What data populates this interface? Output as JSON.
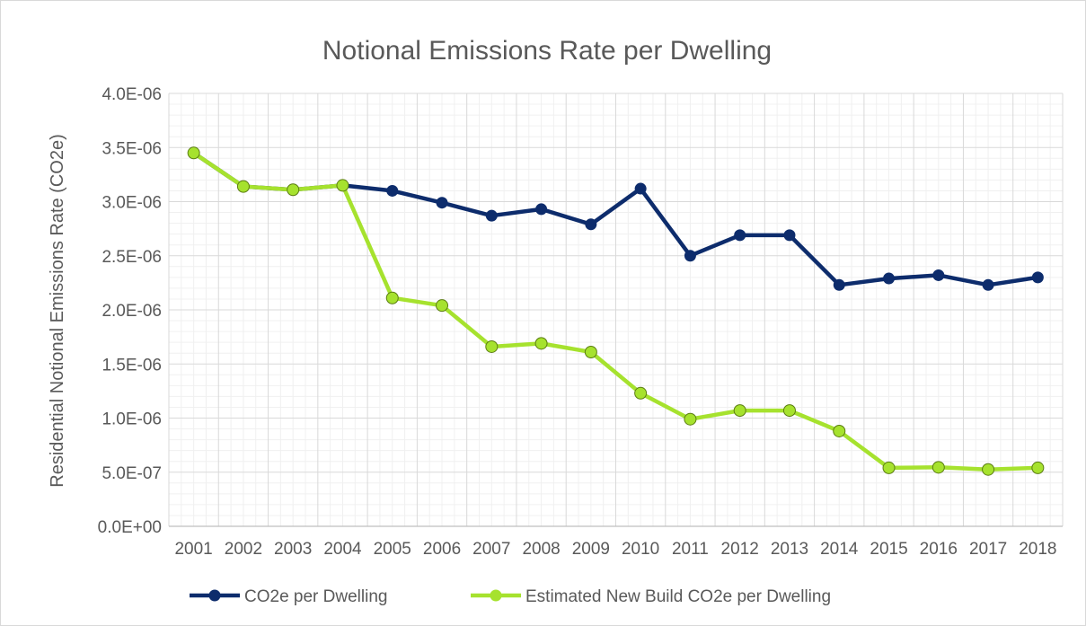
{
  "chart_data": {
    "type": "line",
    "title": "Notional Emissions Rate per Dwelling",
    "xlabel": "",
    "ylabel": "Residential Notional Emissions Rate (CO2e)",
    "categories": [
      "2001",
      "2002",
      "2003",
      "2004",
      "2005",
      "2006",
      "2007",
      "2008",
      "2009",
      "2010",
      "2011",
      "2012",
      "2013",
      "2014",
      "2015",
      "2016",
      "2017",
      "2018"
    ],
    "y_ticks": [
      "0.0E+00",
      "5.0E-07",
      "1.0E-06",
      "1.5E-06",
      "2.0E-06",
      "2.5E-06",
      "3.0E-06",
      "3.5E-06",
      "4.0E-06"
    ],
    "ylim": [
      0,
      4e-06
    ],
    "grid": true,
    "legend_position": "bottom",
    "series": [
      {
        "name": "CO2e per Dwelling",
        "color": "#0d2c6c",
        "values": [
          3.45e-06,
          3.14e-06,
          3.11e-06,
          3.15e-06,
          3.1e-06,
          2.99e-06,
          2.87e-06,
          2.93e-06,
          2.79e-06,
          3.12e-06,
          2.5e-06,
          2.69e-06,
          2.69e-06,
          2.23e-06,
          2.29e-06,
          2.32e-06,
          2.23e-06,
          2.3e-06
        ]
      },
      {
        "name": "Estimated New Build CO2e per Dwelling",
        "color": "#a6e22e",
        "values": [
          3.45e-06,
          3.14e-06,
          3.11e-06,
          3.15e-06,
          2.11e-06,
          2.04e-06,
          1.66e-06,
          1.69e-06,
          1.61e-06,
          1.23e-06,
          9.9e-07,
          1.07e-06,
          1.07e-06,
          8.8e-07,
          5.4e-07,
          5.45e-07,
          5.25e-07,
          5.4e-07
        ]
      }
    ]
  }
}
